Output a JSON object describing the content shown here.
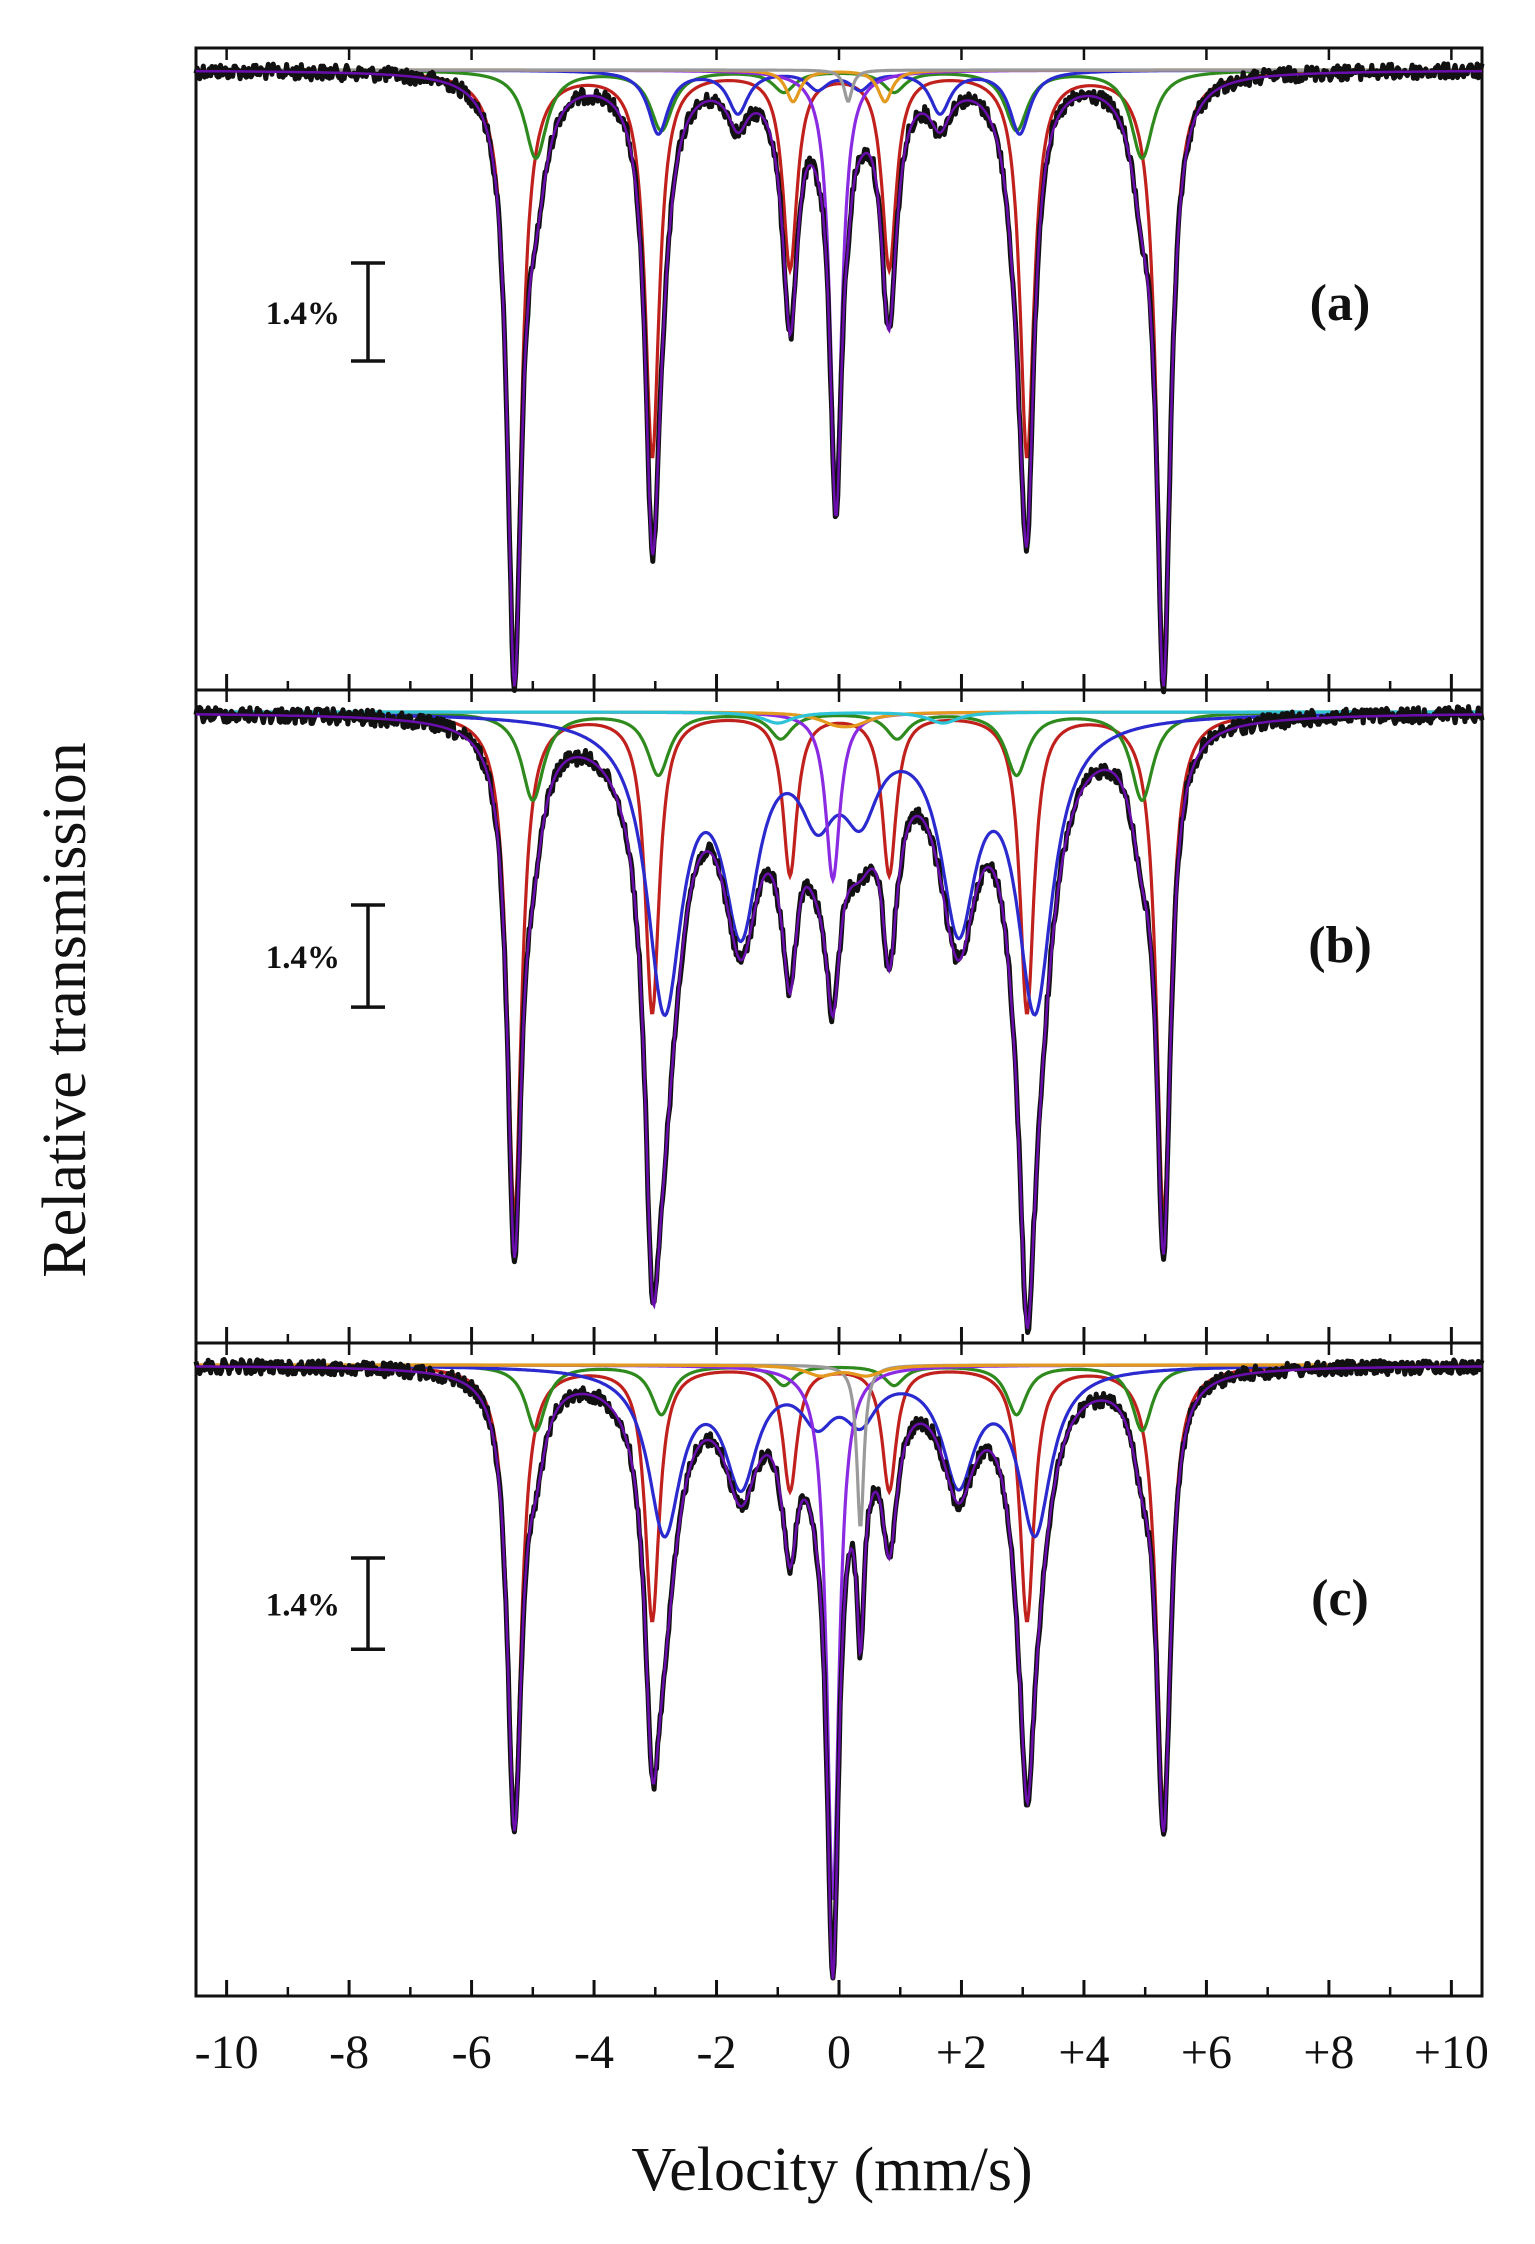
{
  "chart_data": {
    "type": "line",
    "title": "",
    "xlabel": "Velocity (mm/s)",
    "ylabel": "Relative transmission",
    "xlim": [
      -10.5,
      10.5
    ],
    "x_ticks": [
      -10,
      -8,
      -6,
      -4,
      -2,
      0,
      2,
      4,
      6,
      8,
      10
    ],
    "x_tick_labels": [
      "-10",
      "-8",
      "-6",
      "-4",
      "-2",
      "0",
      "+2",
      "+4",
      "+6",
      "+8",
      "+10"
    ],
    "y_units": "absorption (%)",
    "scale_bar": {
      "label": "1.4%",
      "value": 1.4
    },
    "colors": {
      "experimental": "#111111",
      "fit": "#6a0dad",
      "sextet_A": "#c0211d",
      "sextet_B": "#2f8a1e",
      "sextet_C": "#2a2acf",
      "doublet_center": "#8a2be2",
      "doublet_orange": "#e39a1f",
      "doublet_gray": "#9a9a9a",
      "doublet_cyan": "#2ec4d8"
    },
    "panels": [
      {
        "label": "(a)",
        "ylim_depth": 8.6,
        "components": [
          {
            "name": "sextet A",
            "color_key": "sextet_A",
            "lines": [
              -5.3,
              -3.05,
              -0.8,
              0.82,
              3.07,
              5.3
            ],
            "depths": [
              8.4,
              5.5,
              2.8,
              2.8,
              5.5,
              8.4
            ],
            "hwhm": 0.14
          },
          {
            "name": "sextet B",
            "color_key": "sextet_B",
            "lines": [
              -4.95,
              -2.9,
              -0.9,
              0.9,
              2.9,
              4.95
            ],
            "depths": [
              1.25,
              0.85,
              0.3,
              0.3,
              0.85,
              1.25
            ],
            "hwhm": 0.22
          },
          {
            "name": "sextet C",
            "color_key": "sextet_C",
            "lines": [
              -2.95,
              -1.65,
              -0.35,
              0.35,
              1.65,
              2.95
            ],
            "depths": [
              0.9,
              0.6,
              0.25,
              0.25,
              0.6,
              0.9
            ],
            "hwhm": 0.2
          },
          {
            "name": "center singlet",
            "color_key": "doublet_center",
            "lines": [
              -0.05
            ],
            "depths": [
              5.9
            ],
            "hwhm": 0.12
          },
          {
            "name": "orange doublet",
            "color_key": "doublet_orange",
            "lines": [
              -0.75,
              0.75
            ],
            "depths": [
              0.45,
              0.45
            ],
            "hwhm": 0.14
          },
          {
            "name": "gray doublet",
            "color_key": "doublet_gray",
            "lines": [
              0.15
            ],
            "depths": [
              0.45
            ],
            "hwhm": 0.08
          }
        ]
      },
      {
        "label": "(b)",
        "ylim_depth": 8.4,
        "components": [
          {
            "name": "sextet A",
            "color_key": "sextet_A",
            "lines": [
              -5.3,
              -3.05,
              -0.8,
              0.82,
              3.07,
              5.3
            ],
            "depths": [
              6.9,
              4.1,
              2.2,
              2.2,
              4.1,
              6.9
            ],
            "hwhm": 0.14
          },
          {
            "name": "sextet B",
            "color_key": "sextet_B",
            "lines": [
              -5.0,
              -2.95,
              -0.95,
              0.95,
              2.9,
              4.95
            ],
            "depths": [
              1.2,
              0.85,
              0.35,
              0.35,
              0.85,
              1.2
            ],
            "hwhm": 0.22
          },
          {
            "name": "sextet C",
            "color_key": "sextet_C",
            "lines": [
              -2.85,
              -1.6,
              -0.35,
              0.35,
              1.95,
              3.2
            ],
            "depths": [
              3.9,
              2.7,
              1.1,
              1.1,
              2.7,
              3.9
            ],
            "hwhm": 0.35
          },
          {
            "name": "center doublet",
            "color_key": "doublet_center",
            "lines": [
              -0.1
            ],
            "depths": [
              2.3
            ],
            "hwhm": 0.14
          },
          {
            "name": "orange doublet",
            "color_key": "doublet_orange",
            "lines": [
              -0.05,
              0.25
            ],
            "depths": [
              0.12,
              0.12
            ],
            "hwhm": 0.35
          },
          {
            "name": "cyan doublet",
            "color_key": "doublet_cyan",
            "lines": [
              -1.0,
              1.7
            ],
            "depths": [
              0.15,
              0.15
            ],
            "hwhm": 0.3
          }
        ]
      },
      {
        "label": "(c)",
        "ylim_depth": 9.4,
        "components": [
          {
            "name": "sextet A",
            "color_key": "sextet_A",
            "lines": [
              -5.3,
              -3.05,
              -0.8,
              0.82,
              3.07,
              5.3
            ],
            "depths": [
              6.8,
              3.9,
              1.9,
              1.9,
              3.9,
              6.8
            ],
            "hwhm": 0.14
          },
          {
            "name": "sextet B",
            "color_key": "sextet_B",
            "lines": [
              -4.95,
              -2.9,
              -0.9,
              0.9,
              2.9,
              4.95
            ],
            "depths": [
              1.0,
              0.75,
              0.3,
              0.3,
              0.75,
              1.0
            ],
            "hwhm": 0.2
          },
          {
            "name": "sextet C",
            "color_key": "sextet_C",
            "lines": [
              -2.85,
              -1.6,
              -0.35,
              0.35,
              1.95,
              3.2
            ],
            "depths": [
              2.5,
              1.7,
              0.7,
              0.7,
              1.7,
              2.5
            ],
            "hwhm": 0.32
          },
          {
            "name": "center singlet",
            "color_key": "doublet_center",
            "lines": [
              -0.1
            ],
            "depths": [
              8.2
            ],
            "hwhm": 0.12
          },
          {
            "name": "gray doublet",
            "color_key": "doublet_gray",
            "lines": [
              0.35
            ],
            "depths": [
              2.5
            ],
            "hwhm": 0.07
          },
          {
            "name": "orange doublet",
            "color_key": "doublet_orange",
            "lines": [
              -0.3,
              0.45
            ],
            "depths": [
              0.15,
              0.15
            ],
            "hwhm": 0.3
          }
        ]
      }
    ]
  }
}
